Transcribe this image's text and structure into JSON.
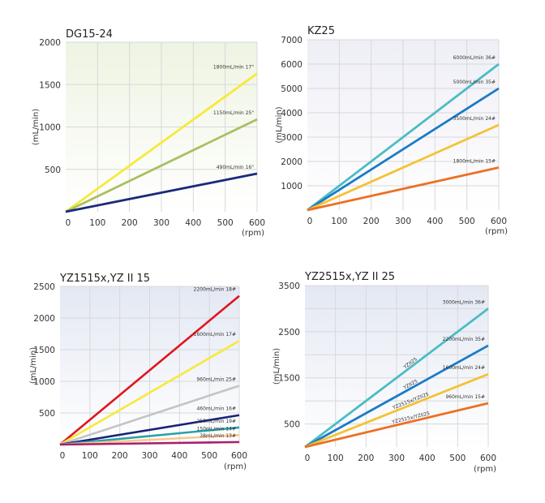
{
  "chart_data": [
    {
      "type": "line",
      "title": "DG15-24",
      "xlabel": "(rpm)",
      "ylabel": "(mL/min)",
      "xlim": [
        0,
        600
      ],
      "ylim": [
        0,
        2000
      ],
      "xticks": [
        "0",
        "100",
        "200",
        "300",
        "400",
        "500",
        "600"
      ],
      "yticks": [
        {
          "v": 500,
          "t": "500"
        },
        {
          "v": 1000,
          "t": "1000"
        },
        {
          "v": 1500,
          "t": "1500"
        },
        {
          "v": 2000,
          "t": "2000"
        }
      ],
      "grid": true,
      "background": [
        "#eef4e2",
        "#ffffff"
      ],
      "series": [
        {
          "name": "1800mL/min 17#",
          "label": "1800mL/min 17\"",
          "color": "#f7e93a",
          "x": [
            0,
            600
          ],
          "y": [
            0,
            1630
          ]
        },
        {
          "name": "1150mL/min 25#",
          "label": "1150mL/min 25\"",
          "color": "#a8c060",
          "x": [
            0,
            600
          ],
          "y": [
            0,
            1090
          ]
        },
        {
          "name": "490mL/min 16#",
          "label": "490mL/min 16\"",
          "color": "#1a2a7a",
          "x": [
            0,
            600
          ],
          "y": [
            0,
            450
          ]
        }
      ]
    },
    {
      "type": "line",
      "title": "KZ25",
      "xlabel": "(rpm)",
      "ylabel": "(mL/min)",
      "xlim": [
        0,
        600
      ],
      "ylim": [
        0,
        7000
      ],
      "xticks": [
        "0",
        "100",
        "200",
        "300",
        "400",
        "500",
        "600"
      ],
      "yticks": [
        {
          "v": 1000,
          "t": "1000"
        },
        {
          "v": 2000,
          "t": "2000"
        },
        {
          "v": 3000,
          "t": "3000"
        },
        {
          "v": 4000,
          "t": "4000"
        },
        {
          "v": 5000,
          "t": "5000"
        },
        {
          "v": 6000,
          "t": "6000"
        },
        {
          "v": 7000,
          "t": "7000"
        }
      ],
      "grid": true,
      "background": [
        "#eeeef6",
        "#ffffff"
      ],
      "series": [
        {
          "name": "6000mL/min 36#",
          "label": "6000mL/min 36#",
          "color": "#4bbcc4",
          "x": [
            0,
            600
          ],
          "y": [
            0,
            6000
          ]
        },
        {
          "name": "5000mL/min 35#",
          "label": "5000mL/min 35#",
          "color": "#1a7ac8",
          "x": [
            0,
            600
          ],
          "y": [
            0,
            5000
          ]
        },
        {
          "name": "3500mL/min 24#",
          "label": "3500mL/min 24#",
          "color": "#f5c234",
          "x": [
            0,
            600
          ],
          "y": [
            0,
            3500
          ]
        },
        {
          "name": "1800mL/min 15#",
          "label": "1800mL/min 15#",
          "color": "#ec7024",
          "x": [
            0,
            600
          ],
          "y": [
            0,
            1750
          ]
        }
      ]
    },
    {
      "type": "line",
      "title": "YZ1515x,YZ II 15",
      "xlabel": "(rpm)",
      "ylabel": "(mL/min)",
      "xlim": [
        0,
        600
      ],
      "ylim": [
        0,
        2500
      ],
      "xticks": [
        "0",
        "100",
        "200",
        "300",
        "400",
        "500",
        "600"
      ],
      "yticks": [
        {
          "v": 500,
          "t": "500"
        },
        {
          "v": 1000,
          "t": "1000"
        },
        {
          "v": 1500,
          "t": "1500"
        },
        {
          "v": 2000,
          "t": "2000"
        },
        {
          "v": 2500,
          "t": "2500"
        }
      ],
      "grid": true,
      "background": [
        "#e3e8f3",
        "#ffffff"
      ],
      "series": [
        {
          "name": "2200mL/min 18#",
          "label": "2200mL/min 18#",
          "color": "#e0141e",
          "x": [
            0,
            600
          ],
          "y": [
            0,
            2350
          ]
        },
        {
          "name": "1600mL/min 17#",
          "label": "1600mL/min 17#",
          "color": "#f7e93a",
          "x": [
            0,
            600
          ],
          "y": [
            0,
            1640
          ]
        },
        {
          "name": "960mL/min 25#",
          "label": "960mL/min 25#",
          "color": "#c4c4c4",
          "x": [
            0,
            600
          ],
          "y": [
            0,
            930
          ]
        },
        {
          "name": "460mL/min 16#",
          "label": "460mL/min 16#",
          "color": "#1a2278",
          "x": [
            0,
            600
          ],
          "y": [
            0,
            465
          ]
        },
        {
          "name": "250mL/min 19#",
          "label": "250mL/min 19#",
          "color": "#2aa0a8",
          "x": [
            0,
            600
          ],
          "y": [
            0,
            270
          ]
        },
        {
          "name": "150mL/min 14#",
          "label": "150mL/min 14#",
          "color": "#fac890",
          "x": [
            0,
            600
          ],
          "y": [
            0,
            150
          ]
        },
        {
          "name": "38mL/min 13#",
          "label": "38mL/min 13#",
          "color": "#a8206e",
          "x": [
            0,
            600
          ],
          "y": [
            0,
            40
          ]
        }
      ]
    },
    {
      "type": "line",
      "title": "YZ2515x,YZ II 25",
      "xlabel": "(rpm)",
      "ylabel": "(mL/min)",
      "xlim": [
        0,
        600
      ],
      "ylim": [
        0,
        3500
      ],
      "xticks": [
        "0",
        "100",
        "200",
        "300",
        "400",
        "500",
        "600"
      ],
      "yticks": [
        {
          "v": 500,
          "t": "500"
        },
        {
          "v": 1500,
          "t": "1500"
        },
        {
          "v": 2500,
          "t": "2500"
        },
        {
          "v": 3500,
          "t": "3500"
        }
      ],
      "ygrid": [
        500,
        1000,
        1500,
        2000,
        2500,
        3000,
        3500
      ],
      "grid": true,
      "background": [
        "#e3e8f3",
        "#ffffff"
      ],
      "series": [
        {
          "name": "3000mL/min 36#",
          "label": "3000mL/min 36#",
          "inline": "YZII25",
          "color": "#4bbcc4",
          "x": [
            0,
            600
          ],
          "y": [
            0,
            3000
          ]
        },
        {
          "name": "2200mL/min 35#",
          "label": "2200mL/min 35#",
          "inline": "YZII25",
          "color": "#1a7ac8",
          "x": [
            0,
            600
          ],
          "y": [
            0,
            2200
          ]
        },
        {
          "name": "1600mL/min 24#",
          "label": "1600mL/min 24#",
          "inline": "YZ2515x/YZII25",
          "color": "#f5c234",
          "x": [
            0,
            600
          ],
          "y": [
            0,
            1580
          ]
        },
        {
          "name": "960mL/min 15#",
          "label": "960mL/min 15#",
          "inline": "YZ2515x/YZII25",
          "color": "#ec7024",
          "x": [
            0,
            600
          ],
          "y": [
            0,
            950
          ]
        }
      ]
    }
  ]
}
